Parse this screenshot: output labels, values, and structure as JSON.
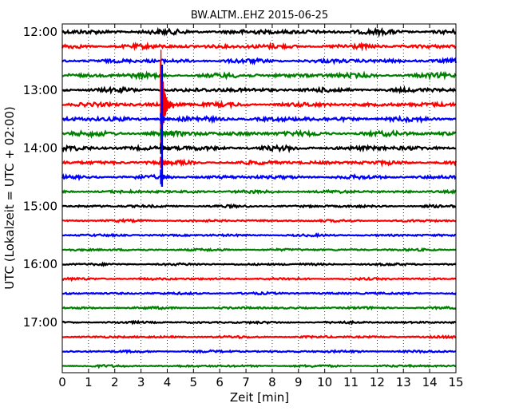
{
  "chart_data": {
    "type": "line",
    "title": "BW.ALTM..EHZ 2015-06-25",
    "xlabel": "Zeit  [min]",
    "ylabel": "UTC (Lokalzeit = UTC + 02:00)",
    "xlim": [
      0,
      15
    ],
    "x_ticks": [
      "0",
      "1",
      "2",
      "3",
      "4",
      "5",
      "6",
      "7",
      "8",
      "9",
      "10",
      "11",
      "12",
      "13",
      "14",
      "15"
    ],
    "y_ticks": [
      "12:00",
      "13:00",
      "14:00",
      "15:00",
      "16:00",
      "17:00"
    ],
    "grid": "vertical dotted",
    "trace_color_cycle": [
      "#000000",
      "#ff0000",
      "#0000ff",
      "#008000"
    ],
    "trace_start_times": [
      "12:00",
      "12:15",
      "12:30",
      "12:45",
      "13:00",
      "13:15",
      "13:30",
      "13:45",
      "14:00",
      "14:15",
      "14:30",
      "14:45",
      "15:00",
      "15:15",
      "15:30",
      "15:45",
      "16:00",
      "16:15",
      "16:30",
      "16:45",
      "17:00",
      "17:15",
      "17:30",
      "17:45"
    ],
    "noise_level": [
      1.0,
      0.9,
      0.85,
      0.95,
      0.9,
      0.85,
      0.95,
      1.0,
      0.95,
      0.8,
      0.75,
      0.6,
      0.5,
      0.45,
      0.45,
      0.45,
      0.45,
      0.45,
      0.45,
      0.45,
      0.45,
      0.45,
      0.45,
      0.45
    ],
    "event": {
      "trace_start": "13:15",
      "time_min": 3.8,
      "peak_relative_amplitude": 9.5,
      "affected_traces": [
        "13:15",
        "13:30",
        "13:45",
        "14:00",
        "14:15",
        "14:30"
      ]
    }
  }
}
